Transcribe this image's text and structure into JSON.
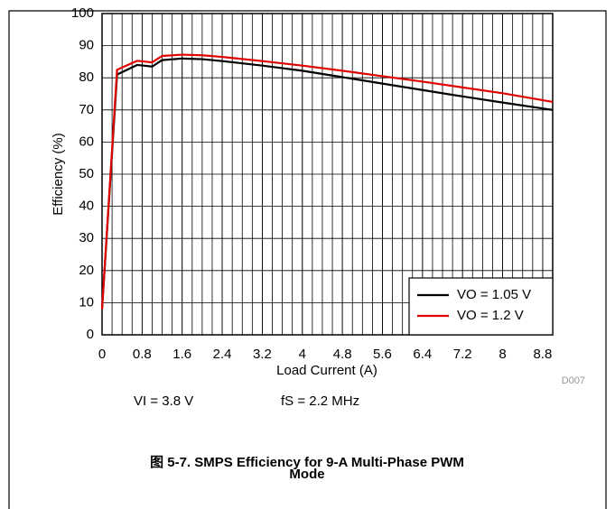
{
  "chart_data": {
    "type": "line",
    "title": "图 5-7. SMPS Efficiency for 9-A Multi-Phase PWM Mode",
    "x_label": "Load Current (A)",
    "y_label": "Efficiency (%)",
    "annotations": [
      "VI = 3.8 V",
      "fS = 2.2 MHz",
      "D007"
    ],
    "x": [
      0,
      0.3,
      0.7,
      1.0,
      1.2,
      1.6,
      2.0,
      2.4,
      3.2,
      4.0,
      4.8,
      5.6,
      6.4,
      7.2,
      8.0,
      9.0
    ],
    "series": [
      {
        "name": "VO = 1.05 V",
        "color": "#000000",
        "values": [
          8,
          81,
          84,
          83.5,
          85.5,
          86,
          85.8,
          85.2,
          83.8,
          82.2,
          80.2,
          78.2,
          76.2,
          74.2,
          72.3,
          70
        ]
      },
      {
        "name": "VO = 1.2 V",
        "color": "#e00000",
        "values": [
          8,
          82.5,
          85.3,
          84.8,
          86.8,
          87.2,
          87,
          86.5,
          85.2,
          83.8,
          82.2,
          80.5,
          78.8,
          77,
          75.2,
          72.5
        ]
      }
    ],
    "xlim": [
      0,
      9
    ],
    "xticks": [
      0,
      0.8,
      1.6,
      2.4,
      3.2,
      4,
      4.8,
      5.6,
      6.4,
      7.2,
      8,
      8.8
    ],
    "ylim": [
      0,
      100
    ],
    "yticks": [
      0,
      10,
      20,
      30,
      40,
      50,
      60,
      70,
      80,
      90,
      100
    ],
    "grid": true,
    "legend": "lower right"
  }
}
